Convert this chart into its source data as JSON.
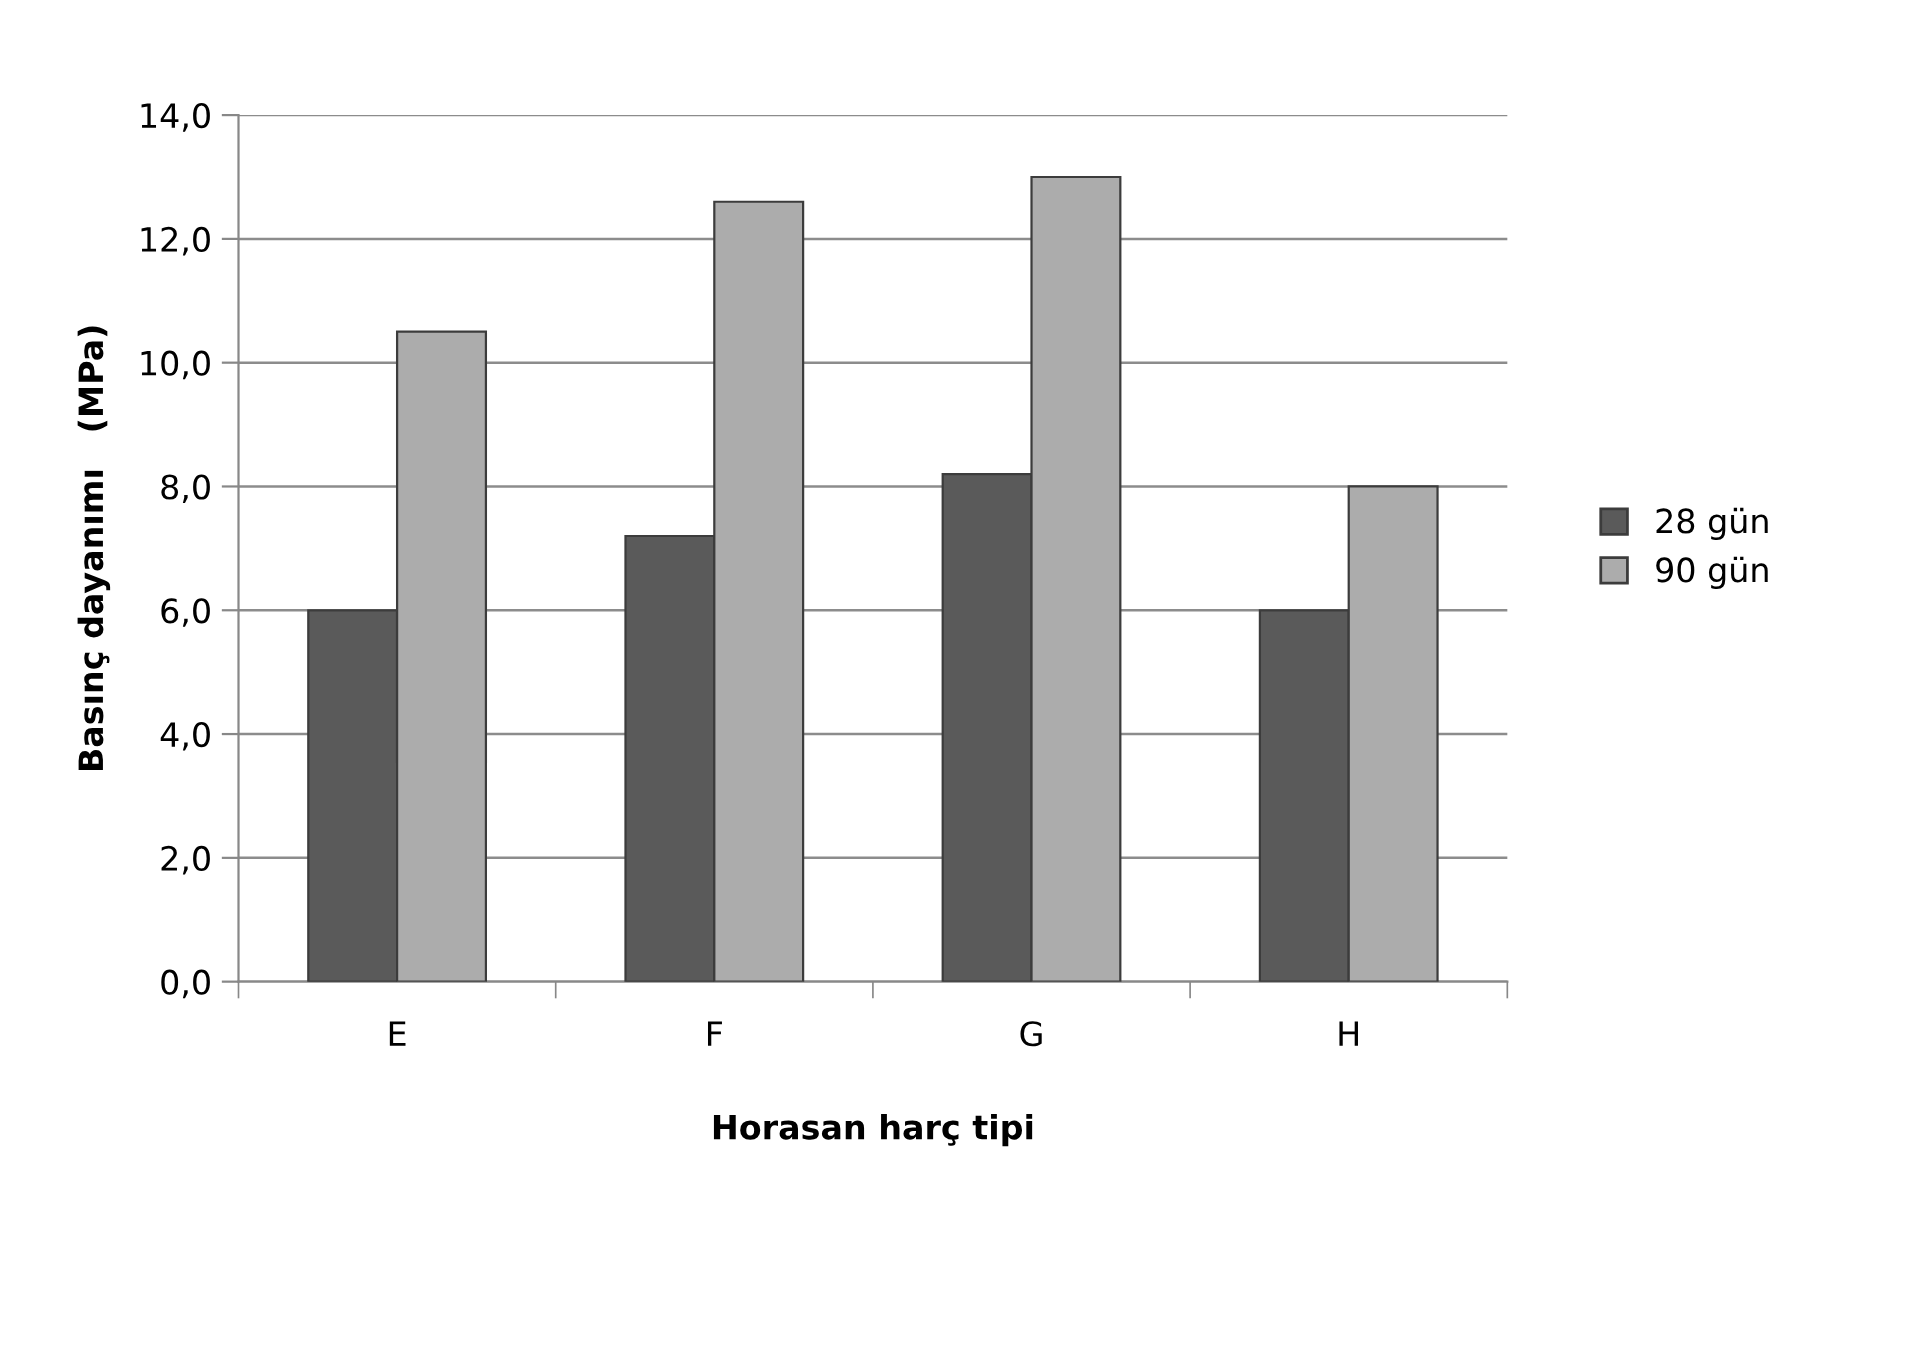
{
  "chart_data": {
    "type": "bar",
    "xlabel": "Horasan harç tipi",
    "ylabel": "Basınç dayanımı   (MPa)",
    "categories": [
      "E",
      "F",
      "G",
      "H"
    ],
    "series": [
      {
        "name": "28 gün",
        "color": "#5a5a5a",
        "values": [
          6.0,
          7.2,
          8.2,
          6.0
        ]
      },
      {
        "name": "90 gün",
        "color": "#acacac",
        "values": [
          10.5,
          12.6,
          13.0,
          8.0
        ]
      }
    ],
    "ylim": [
      0,
      14
    ],
    "yticks": [
      {
        "value": 0,
        "label": "0,0"
      },
      {
        "value": 2,
        "label": "2,0"
      },
      {
        "value": 4,
        "label": "4,0"
      },
      {
        "value": 6,
        "label": "6,0"
      },
      {
        "value": 8,
        "label": "8,0"
      },
      {
        "value": 10,
        "label": "10,0"
      },
      {
        "value": 12,
        "label": "12,0"
      },
      {
        "value": 14,
        "label": "14,0"
      }
    ],
    "grid": "y",
    "legend": "right"
  }
}
